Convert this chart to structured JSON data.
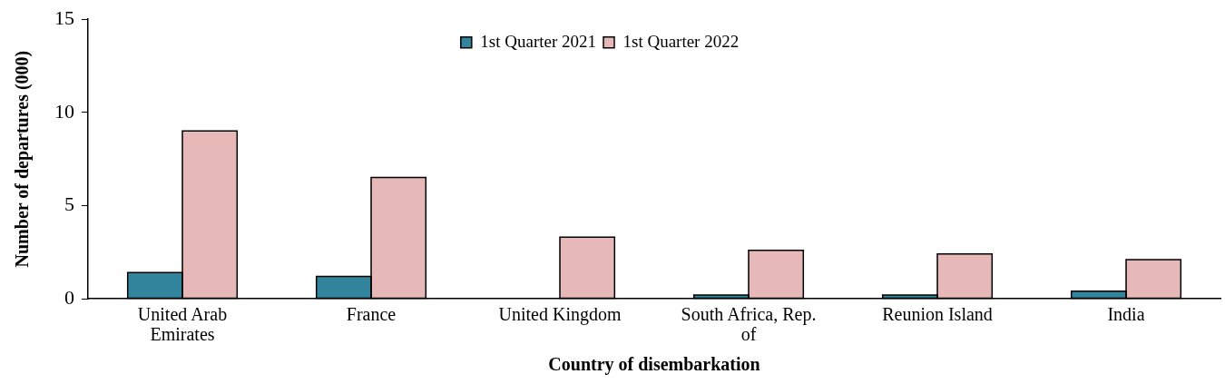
{
  "chart_data": {
    "type": "bar",
    "xlabel": "Country of disembarkation",
    "ylabel": "Number of departures (000)",
    "categories": [
      "United Arab Emirates",
      "France",
      "United Kingdom",
      "South Africa, Rep. of",
      "Reunion Island",
      "India"
    ],
    "series": [
      {
        "name": "1st Quarter 2021",
        "color": "#31849b",
        "values": [
          1.4,
          1.2,
          null,
          0.2,
          0.2,
          0.4
        ]
      },
      {
        "name": "1st Quarter 2022",
        "color": "#e6b8b7",
        "values": [
          9.0,
          6.5,
          3.3,
          2.6,
          2.4,
          2.1
        ]
      }
    ],
    "ylim": [
      0,
      15
    ],
    "yticks": [
      0,
      5,
      10,
      15
    ],
    "grid": false,
    "legend": "top"
  }
}
